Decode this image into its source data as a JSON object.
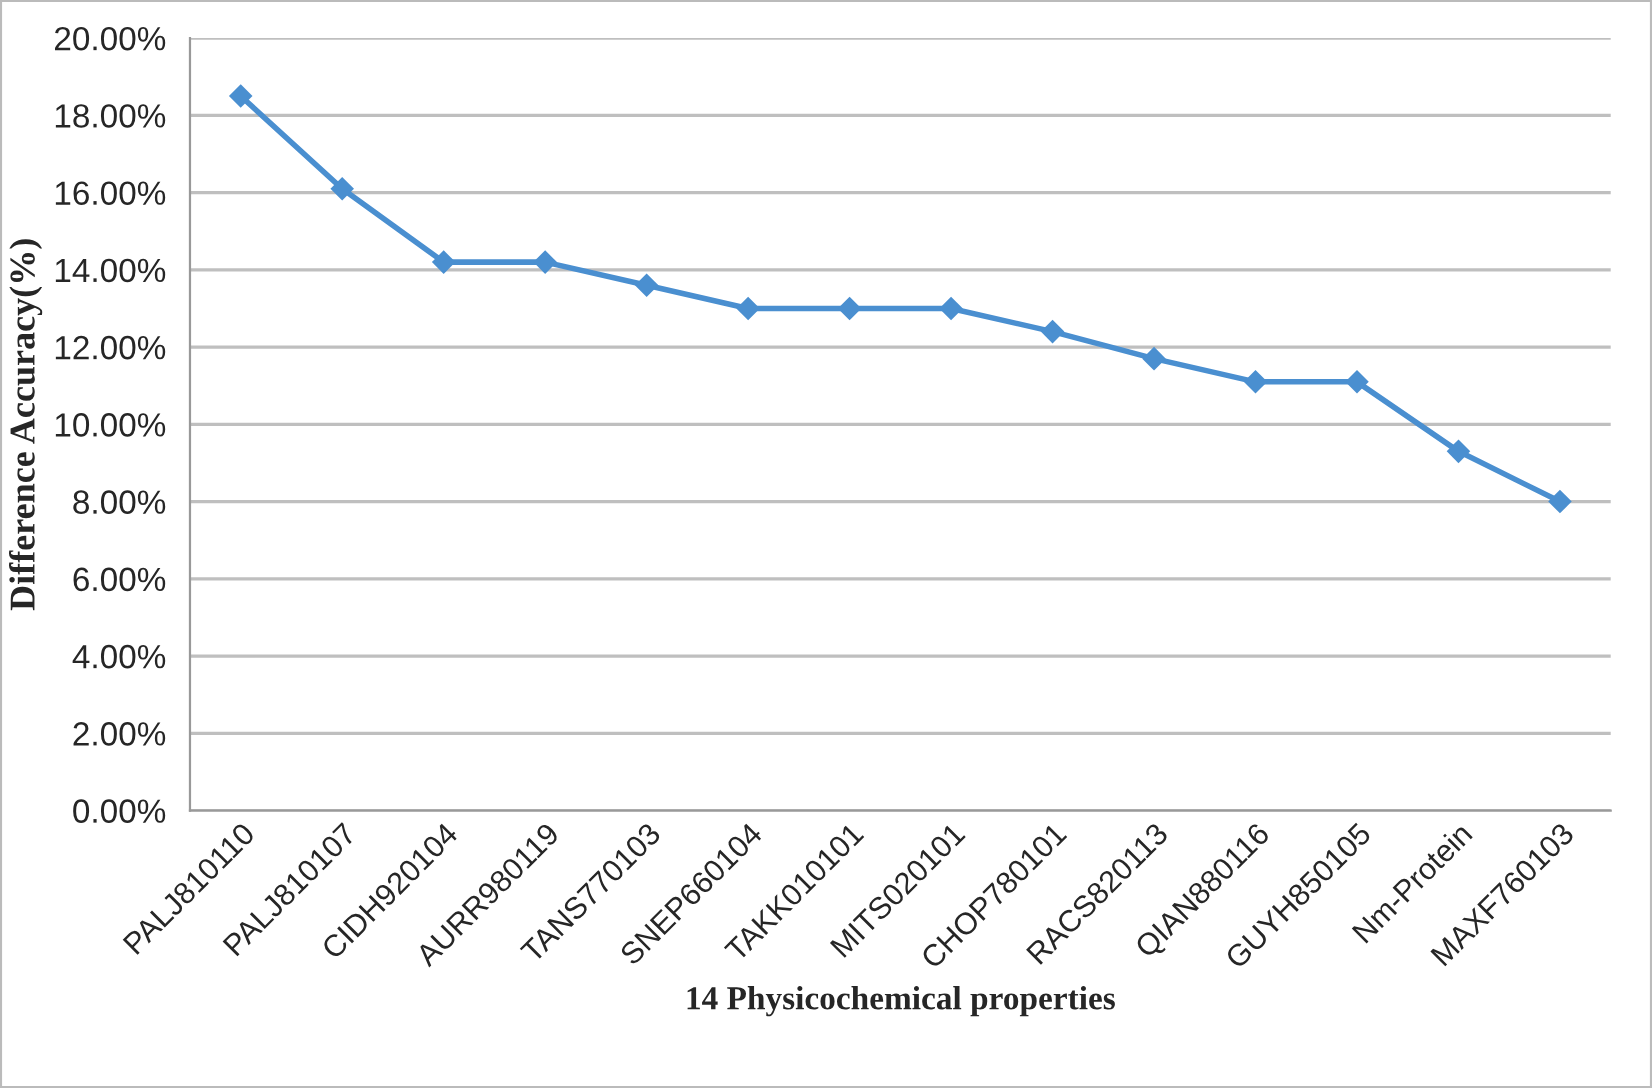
{
  "chart_data": {
    "type": "line",
    "xlabel": "14 Physicochemical properties",
    "ylabel": "Difference Accuracy(%)",
    "categories": [
      "PALJ810110",
      "PALJ810107",
      "CIDH920104",
      "AURR980119",
      "TANS770103",
      "SNEP660104",
      "TAKK010101",
      "MITS020101",
      "CHOP780101",
      "RACS820113",
      "QIAN880116",
      "GUYH850105",
      "Nm-Protein",
      "MAXF760103"
    ],
    "series": [
      {
        "color": "#4a8fd0",
        "values": [
          18.5,
          16.1,
          14.2,
          14.2,
          13.6,
          13.0,
          13.0,
          13.0,
          12.4,
          11.7,
          11.1,
          11.1,
          9.3,
          8.0
        ]
      }
    ],
    "ylim": [
      0,
      20
    ],
    "yticks": [
      {
        "value": 0,
        "label": "0.00%"
      },
      {
        "value": 2,
        "label": "2.00%"
      },
      {
        "value": 4,
        "label": "4.00%"
      },
      {
        "value": 6,
        "label": "6.00%"
      },
      {
        "value": 8,
        "label": "8.00%"
      },
      {
        "value": 10,
        "label": "10.00%"
      },
      {
        "value": 12,
        "label": "12.00%"
      },
      {
        "value": 14,
        "label": "14.00%"
      },
      {
        "value": 16,
        "label": "16.00%"
      },
      {
        "value": 18,
        "label": "18.00%"
      },
      {
        "value": 20,
        "label": "20.00%"
      }
    ],
    "grid": "y",
    "marker": "diamond",
    "line_style": "solid"
  }
}
